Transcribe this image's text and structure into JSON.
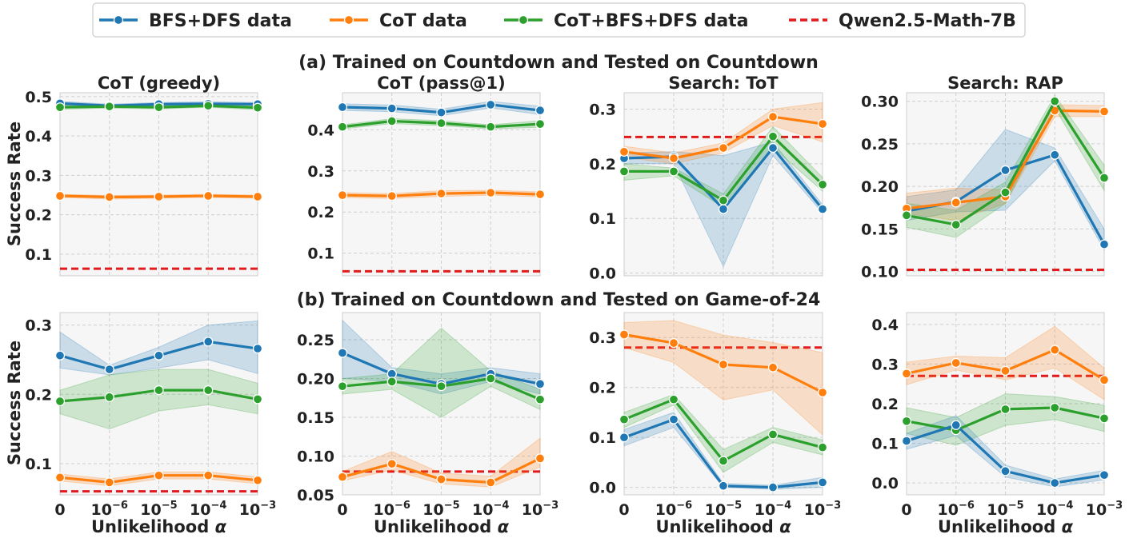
{
  "chart_data": {
    "type": "line",
    "legend": [
      {
        "key": "bfsdfs",
        "label": "BFS+DFS data",
        "color": "#1f77b4",
        "style": "solid-marker"
      },
      {
        "key": "cot",
        "label": "CoT data",
        "color": "#ff7f0e",
        "style": "solid-marker"
      },
      {
        "key": "cotbfsdfs",
        "label": "CoT+BFS+DFS data",
        "color": "#2ca02c",
        "style": "solid-marker"
      },
      {
        "key": "qwen",
        "label": "Qwen2.5-Math-7B",
        "color": "#e31a1c",
        "style": "dashed"
      }
    ],
    "row_titles": [
      "(a) Trained on Countdown and Tested on Countdown",
      "(b) Trained on Countdown and Tested on Game-of-24"
    ],
    "x_categories": [
      "0",
      "10",
      "10",
      "10",
      "10"
    ],
    "x_exponents": [
      "",
      "−6",
      "−5",
      "−4",
      "−3"
    ],
    "xlabel_text": "Unlikelihood ",
    "xlabel_symbol": "α",
    "ylabel": "Success Rate",
    "panels": [
      {
        "row": 0,
        "col": 0,
        "title": "CoT (greedy)",
        "ylim": [
          0.045,
          0.51
        ],
        "yticks": [
          0.1,
          0.2,
          0.3,
          0.4,
          0.5
        ],
        "ytick_labels": [
          "0.1",
          "0.2",
          "0.3",
          "0.4",
          "0.5"
        ],
        "baseline": 0.063,
        "series": [
          {
            "key": "bfsdfs",
            "values": [
              0.483,
              0.477,
              0.481,
              0.482,
              0.481
            ],
            "low": [
              0.478,
              0.473,
              0.477,
              0.478,
              0.477
            ],
            "high": [
              0.488,
              0.481,
              0.485,
              0.487,
              0.485
            ]
          },
          {
            "key": "cotbfsdfs",
            "values": [
              0.473,
              0.475,
              0.473,
              0.477,
              0.472
            ],
            "low": [
              0.468,
              0.471,
              0.469,
              0.473,
              0.467
            ],
            "high": [
              0.478,
              0.479,
              0.477,
              0.481,
              0.477
            ]
          },
          {
            "key": "cot",
            "values": [
              0.248,
              0.245,
              0.246,
              0.248,
              0.246
            ],
            "low": [
              0.244,
              0.24,
              0.242,
              0.244,
              0.242
            ],
            "high": [
              0.252,
              0.249,
              0.25,
              0.252,
              0.25
            ]
          }
        ]
      },
      {
        "row": 0,
        "col": 1,
        "title": "CoT (pass@1)",
        "ylim": [
          0.045,
          0.49
        ],
        "yticks": [
          0.1,
          0.2,
          0.3,
          0.4
        ],
        "ytick_labels": [
          "0.1",
          "0.2",
          "0.3",
          "0.4"
        ],
        "baseline": 0.056,
        "series": [
          {
            "key": "bfsdfs",
            "values": [
              0.455,
              0.452,
              0.442,
              0.461,
              0.447
            ],
            "low": [
              0.447,
              0.444,
              0.434,
              0.453,
              0.437
            ],
            "high": [
              0.463,
              0.46,
              0.45,
              0.469,
              0.457
            ]
          },
          {
            "key": "cotbfsdfs",
            "values": [
              0.407,
              0.421,
              0.416,
              0.407,
              0.414
            ],
            "low": [
              0.402,
              0.415,
              0.41,
              0.402,
              0.406
            ],
            "high": [
              0.412,
              0.427,
              0.422,
              0.412,
              0.422
            ]
          },
          {
            "key": "cot",
            "values": [
              0.241,
              0.239,
              0.245,
              0.247,
              0.243
            ],
            "low": [
              0.235,
              0.233,
              0.238,
              0.241,
              0.237
            ],
            "high": [
              0.247,
              0.245,
              0.252,
              0.253,
              0.249
            ]
          }
        ]
      },
      {
        "row": 0,
        "col": 2,
        "title": "Search: ToT",
        "ylim": [
          -0.005,
          0.33
        ],
        "yticks": [
          0.0,
          0.1,
          0.2,
          0.3
        ],
        "ytick_labels": [
          "0.0",
          "0.1",
          "0.2",
          "0.3"
        ],
        "baseline": 0.249,
        "series": [
          {
            "key": "bfsdfs",
            "values": [
              0.21,
              0.213,
              0.117,
              0.229,
              0.117
            ],
            "low": [
              0.2,
              0.2,
              0.012,
              0.215,
              0.11
            ],
            "high": [
              0.22,
              0.222,
              0.215,
              0.24,
              0.125
            ]
          },
          {
            "key": "cot",
            "values": [
              0.222,
              0.21,
              0.229,
              0.286,
              0.273
            ],
            "low": [
              0.212,
              0.2,
              0.22,
              0.27,
              0.24
            ],
            "high": [
              0.232,
              0.22,
              0.238,
              0.3,
              0.312
            ]
          },
          {
            "key": "cotbfsdfs",
            "values": [
              0.186,
              0.186,
              0.133,
              0.25,
              0.162
            ],
            "low": [
              0.17,
              0.178,
              0.12,
              0.23,
              0.15
            ],
            "high": [
              0.2,
              0.192,
              0.145,
              0.268,
              0.175
            ]
          }
        ]
      },
      {
        "row": 0,
        "col": 3,
        "title": "Search: RAP",
        "ylim": [
          0.095,
          0.31
        ],
        "yticks": [
          0.1,
          0.15,
          0.2,
          0.25,
          0.3
        ],
        "ytick_labels": [
          "0.10",
          "0.15",
          "0.20",
          "0.25",
          "0.30"
        ],
        "baseline": 0.102,
        "series": [
          {
            "key": "bfsdfs",
            "values": [
              0.171,
              0.182,
              0.219,
              0.237,
              0.132
            ],
            "low": [
              0.16,
              0.17,
              0.172,
              0.23,
              0.125
            ],
            "high": [
              0.188,
              0.196,
              0.267,
              0.245,
              0.15
            ]
          },
          {
            "key": "cot",
            "values": [
              0.174,
              0.181,
              0.188,
              0.289,
              0.288
            ],
            "low": [
              0.168,
              0.16,
              0.18,
              0.282,
              0.282
            ],
            "high": [
              0.192,
              0.198,
              0.196,
              0.296,
              0.295
            ]
          },
          {
            "key": "cotbfsdfs",
            "values": [
              0.166,
              0.155,
              0.193,
              0.3,
              0.21
            ],
            "low": [
              0.152,
              0.14,
              0.18,
              0.292,
              0.195
            ],
            "high": [
              0.18,
              0.172,
              0.205,
              0.307,
              0.225
            ]
          }
        ]
      },
      {
        "row": 1,
        "col": 0,
        "title": "",
        "ylim": [
          0.055,
          0.318
        ],
        "yticks": [
          0.1,
          0.2,
          0.3
        ],
        "ytick_labels": [
          "0.1",
          "0.2",
          "0.3"
        ],
        "baseline": 0.06,
        "series": [
          {
            "key": "bfsdfs",
            "values": [
              0.256,
              0.236,
              0.256,
              0.276,
              0.266
            ],
            "low": [
              0.238,
              0.228,
              0.238,
              0.25,
              0.23
            ],
            "high": [
              0.29,
              0.242,
              0.268,
              0.3,
              0.306
            ]
          },
          {
            "key": "cotbfsdfs",
            "values": [
              0.19,
              0.196,
              0.206,
              0.206,
              0.193
            ],
            "low": [
              0.172,
              0.15,
              0.176,
              0.185,
              0.172
            ],
            "high": [
              0.206,
              0.228,
              0.236,
              0.236,
              0.216
            ]
          },
          {
            "key": "cot",
            "values": [
              0.08,
              0.073,
              0.083,
              0.083,
              0.076
            ],
            "low": [
              0.075,
              0.068,
              0.078,
              0.078,
              0.071
            ],
            "high": [
              0.085,
              0.078,
              0.088,
              0.088,
              0.081
            ]
          }
        ]
      },
      {
        "row": 1,
        "col": 1,
        "title": "",
        "ylim": [
          0.05,
          0.285
        ],
        "yticks": [
          0.05,
          0.1,
          0.15,
          0.2,
          0.25
        ],
        "ytick_labels": [
          "0.05",
          "0.10",
          "0.15",
          "0.20",
          "0.25"
        ],
        "baseline": 0.08,
        "series": [
          {
            "key": "bfsdfs",
            "values": [
              0.233,
              0.206,
              0.193,
              0.206,
              0.193
            ],
            "low": [
              0.2,
              0.196,
              0.18,
              0.196,
              0.18
            ],
            "high": [
              0.275,
              0.214,
              0.206,
              0.214,
              0.206
            ]
          },
          {
            "key": "cotbfsdfs",
            "values": [
              0.19,
              0.196,
              0.19,
              0.2,
              0.173
            ],
            "low": [
              0.18,
              0.186,
              0.15,
              0.19,
              0.16
            ],
            "high": [
              0.2,
              0.206,
              0.265,
              0.21,
              0.186
            ]
          },
          {
            "key": "cot",
            "values": [
              0.073,
              0.09,
              0.07,
              0.066,
              0.097
            ],
            "low": [
              0.068,
              0.082,
              0.064,
              0.06,
              0.086
            ],
            "high": [
              0.08,
              0.106,
              0.078,
              0.074,
              0.123
            ]
          }
        ]
      },
      {
        "row": 1,
        "col": 2,
        "title": "",
        "ylim": [
          -0.015,
          0.35
        ],
        "yticks": [
          0.0,
          0.1,
          0.2,
          0.3
        ],
        "ytick_labels": [
          "0.0",
          "0.1",
          "0.2",
          "0.3"
        ],
        "baseline": 0.28,
        "series": [
          {
            "key": "cot",
            "values": [
              0.306,
              0.289,
              0.246,
              0.24,
              0.19
            ],
            "low": [
              0.28,
              0.25,
              0.175,
              0.195,
              0.105
            ],
            "high": [
              0.33,
              0.334,
              0.305,
              0.29,
              0.27
            ]
          },
          {
            "key": "cotbfsdfs",
            "values": [
              0.136,
              0.176,
              0.053,
              0.106,
              0.08
            ],
            "low": [
              0.12,
              0.165,
              0.03,
              0.09,
              0.065
            ],
            "high": [
              0.15,
              0.186,
              0.076,
              0.12,
              0.095
            ]
          },
          {
            "key": "bfsdfs",
            "values": [
              0.1,
              0.136,
              0.003,
              0.0,
              0.01
            ],
            "low": [
              0.083,
              0.12,
              0.0,
              -0.004,
              0.0
            ],
            "high": [
              0.116,
              0.15,
              0.008,
              0.004,
              0.02
            ]
          }
        ]
      },
      {
        "row": 1,
        "col": 3,
        "title": "",
        "ylim": [
          -0.03,
          0.43
        ],
        "yticks": [
          0.0,
          0.1,
          0.2,
          0.3,
          0.4
        ],
        "ytick_labels": [
          "0.0",
          "0.1",
          "0.2",
          "0.3",
          "0.4"
        ],
        "baseline": 0.27,
        "series": [
          {
            "key": "cot",
            "values": [
              0.276,
              0.303,
              0.283,
              0.336,
              0.26
            ],
            "low": [
              0.248,
              0.285,
              0.26,
              0.29,
              0.21
            ],
            "high": [
              0.305,
              0.32,
              0.316,
              0.395,
              0.29
            ]
          },
          {
            "key": "cotbfsdfs",
            "values": [
              0.156,
              0.133,
              0.186,
              0.19,
              0.163
            ],
            "low": [
              0.125,
              0.095,
              0.145,
              0.16,
              0.13
            ],
            "high": [
              0.19,
              0.165,
              0.225,
              0.218,
              0.196
            ]
          },
          {
            "key": "bfsdfs",
            "values": [
              0.106,
              0.146,
              0.03,
              0.0,
              0.02
            ],
            "low": [
              0.085,
              0.12,
              0.015,
              -0.01,
              0.008
            ],
            "high": [
              0.125,
              0.17,
              0.045,
              0.01,
              0.032
            ]
          }
        ]
      }
    ]
  }
}
